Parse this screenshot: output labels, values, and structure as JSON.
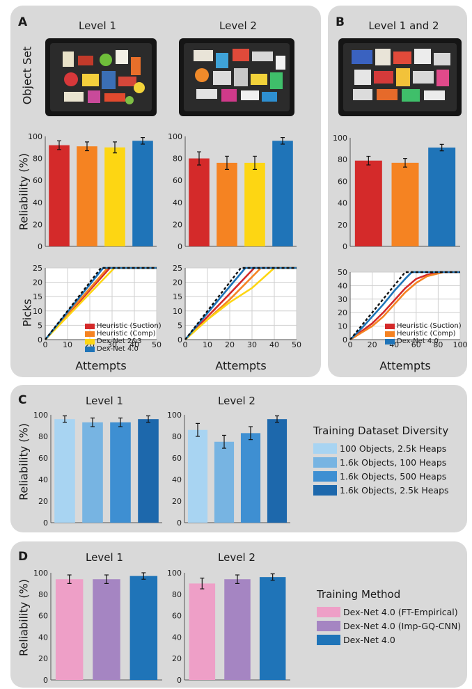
{
  "panels": {
    "a_label": "A",
    "b_label": "B",
    "c_label": "C",
    "d_label": "D",
    "a_level1": "Level 1",
    "a_level2": "Level 2",
    "b_level": "Level 1 and 2",
    "c_level1": "Level 1",
    "c_level2": "Level 2",
    "d_level1": "Level 1",
    "d_level2": "Level 2",
    "object_set_label": "Object Set",
    "reliability_label": "Reliability (%)",
    "picks_label": "Picks",
    "attempts_label": "Attempts"
  },
  "colors": {
    "heuristic_suction": "#d42a2a",
    "heuristic_comp": "#f58322",
    "dexnet_23": "#fdd613",
    "dexnet_40": "#1f74b8",
    "div_100_2_5k": "#a8d4f2",
    "div_1_6k_100": "#77b4e2",
    "div_1_6k_500": "#3e8fd2",
    "div_1_6k_2_5k": "#1d68ac",
    "ft_empirical": "#ee9fc7",
    "imp_gqcnn": "#a585c2",
    "panel_bg": "#d9d9d9"
  },
  "legend_a": [
    "Heuristic (Suction)",
    "Heuristic (Comp)",
    "Dex-Net 2&3",
    "Dex-Net 4.0"
  ],
  "legend_b": [
    "Heuristic (Suction)",
    "Heuristic (Comp)",
    "Dex-Net 4.0"
  ],
  "legend_c": {
    "title": "Training Dataset Diversity",
    "items": [
      "100 Objects, 2.5k Heaps",
      "1.6k Objects,  100 Heaps",
      "1.6k Objects,  500 Heaps",
      "1.6k Objects, 2.5k Heaps"
    ]
  },
  "legend_d": {
    "title": "Training Method",
    "items": [
      "Dex-Net 4.0 (FT-Empirical)",
      "Dex-Net 4.0 (Imp-GQ-CNN)",
      "Dex-Net 4.0"
    ]
  },
  "chart_data": [
    {
      "id": "a1_bar",
      "type": "bar",
      "ylim": [
        0,
        100
      ],
      "yticks": [
        0,
        20,
        40,
        60,
        80,
        100
      ],
      "categories": [
        "Heuristic (Suction)",
        "Heuristic (Comp)",
        "Dex-Net 2&3",
        "Dex-Net 4.0"
      ],
      "values": [
        92,
        91,
        90,
        96
      ],
      "errors": [
        4,
        4,
        5,
        3
      ]
    },
    {
      "id": "a2_bar",
      "type": "bar",
      "ylim": [
        0,
        100
      ],
      "yticks": [
        0,
        20,
        40,
        60,
        80,
        100
      ],
      "categories": [
        "Heuristic (Suction)",
        "Heuristic (Comp)",
        "Dex-Net 2&3",
        "Dex-Net 4.0"
      ],
      "values": [
        80,
        76,
        76,
        96
      ],
      "errors": [
        6,
        6,
        6,
        3
      ]
    },
    {
      "id": "b_bar",
      "type": "bar",
      "ylim": [
        0,
        100
      ],
      "yticks": [
        0,
        20,
        40,
        60,
        80,
        100
      ],
      "categories": [
        "Heuristic (Suction)",
        "Heuristic (Comp)",
        "Dex-Net 4.0"
      ],
      "values": [
        79,
        77,
        91
      ],
      "errors": [
        4,
        4,
        3
      ]
    },
    {
      "id": "a1_line",
      "type": "line",
      "xlim": [
        0,
        50
      ],
      "ylim": [
        0,
        25
      ],
      "xticks": [
        0,
        10,
        20,
        30,
        40,
        50
      ],
      "yticks": [
        0,
        5,
        10,
        15,
        20,
        25
      ],
      "series": [
        {
          "name": "Heuristic (Suction)",
          "points": [
            [
              0,
              0
            ],
            [
              29,
              25
            ],
            [
              50,
              25
            ]
          ]
        },
        {
          "name": "Heuristic (Comp)",
          "points": [
            [
              0,
              0
            ],
            [
              28,
              25
            ],
            [
              50,
              25
            ]
          ]
        },
        {
          "name": "Dex-Net 2&3",
          "points": [
            [
              0,
              0
            ],
            [
              31,
              25
            ],
            [
              50,
              25
            ]
          ]
        },
        {
          "name": "Dex-Net 4.0",
          "points": [
            [
              0,
              0
            ],
            [
              26,
              25
            ],
            [
              50,
              25
            ]
          ]
        },
        {
          "points": [
            [
              0,
              0
            ],
            [
              25,
              25
            ],
            [
              50,
              25
            ]
          ]
        }
      ]
    },
    {
      "id": "a2_line",
      "type": "line",
      "xlim": [
        0,
        50
      ],
      "ylim": [
        0,
        25
      ],
      "xticks": [
        0,
        10,
        20,
        30,
        40,
        50
      ],
      "yticks": [
        0,
        5,
        10,
        15,
        20,
        25
      ],
      "series": [
        {
          "name": "Heuristic (Suction)",
          "points": [
            [
              0,
              0
            ],
            [
              10,
              8
            ],
            [
              20,
              16
            ],
            [
              31,
              25
            ],
            [
              50,
              25
            ]
          ]
        },
        {
          "name": "Heuristic (Comp)",
          "points": [
            [
              0,
              0
            ],
            [
              10,
              7
            ],
            [
              20,
              14
            ],
            [
              34,
              25
            ],
            [
              50,
              25
            ]
          ]
        },
        {
          "name": "Dex-Net 2&3",
          "points": [
            [
              0,
              0
            ],
            [
              10,
              7
            ],
            [
              20,
              13
            ],
            [
              30,
              18
            ],
            [
              40,
              25
            ],
            [
              50,
              25
            ]
          ]
        },
        {
          "name": "Dex-Net 4.0",
          "points": [
            [
              0,
              0
            ],
            [
              27,
              25
            ],
            [
              50,
              25
            ]
          ]
        },
        {
          "points": [
            [
              0,
              0
            ],
            [
              25,
              25
            ],
            [
              50,
              25
            ]
          ]
        }
      ]
    },
    {
      "id": "b_line",
      "type": "line",
      "xlim": [
        0,
        100
      ],
      "ylim": [
        0,
        50
      ],
      "xticks": [
        0,
        20,
        40,
        60,
        80,
        100
      ],
      "yticks": [
        0,
        10,
        20,
        30,
        40,
        50
      ],
      "series": [
        {
          "name": "Heuristic (Suction)",
          "points": [
            [
              0,
              0
            ],
            [
              10,
              6
            ],
            [
              20,
              12
            ],
            [
              30,
              20
            ],
            [
              40,
              29
            ],
            [
              50,
              38
            ],
            [
              60,
              45
            ],
            [
              70,
              48
            ],
            [
              80,
              50
            ],
            [
              100,
              50
            ]
          ]
        },
        {
          "name": "Heuristic (Comp)",
          "points": [
            [
              0,
              0
            ],
            [
              10,
              5
            ],
            [
              20,
              10
            ],
            [
              30,
              17
            ],
            [
              40,
              26
            ],
            [
              50,
              35
            ],
            [
              60,
              42
            ],
            [
              70,
              47
            ],
            [
              85,
              50
            ],
            [
              100,
              50
            ]
          ]
        },
        {
          "name": "Dex-Net 4.0",
          "points": [
            [
              0,
              0
            ],
            [
              10,
              8
            ],
            [
              20,
              17
            ],
            [
              30,
              26
            ],
            [
              40,
              36
            ],
            [
              50,
              45
            ],
            [
              56,
              50
            ],
            [
              100,
              50
            ]
          ]
        },
        {
          "points": [
            [
              0,
              0
            ],
            [
              50,
              50
            ],
            [
              100,
              50
            ]
          ]
        }
      ]
    },
    {
      "id": "c1_bar",
      "type": "bar",
      "ylim": [
        0,
        100
      ],
      "yticks": [
        0,
        20,
        40,
        60,
        80,
        100
      ],
      "categories": [
        "100 Objects, 2.5k Heaps",
        "1.6k Objects,  100 Heaps",
        "1.6k Objects,  500 Heaps",
        "1.6k Objects, 2.5k Heaps"
      ],
      "values": [
        96,
        93,
        93,
        96
      ],
      "errors": [
        3,
        4,
        4,
        3
      ]
    },
    {
      "id": "c2_bar",
      "type": "bar",
      "ylim": [
        0,
        100
      ],
      "yticks": [
        0,
        20,
        40,
        60,
        80,
        100
      ],
      "categories": [
        "100 Objects, 2.5k Heaps",
        "1.6k Objects,  100 Heaps",
        "1.6k Objects,  500 Heaps",
        "1.6k Objects, 2.5k Heaps"
      ],
      "values": [
        86,
        75,
        83,
        96
      ],
      "errors": [
        6,
        6,
        6,
        3
      ]
    },
    {
      "id": "d1_bar",
      "type": "bar",
      "ylim": [
        0,
        100
      ],
      "yticks": [
        0,
        20,
        40,
        60,
        80,
        100
      ],
      "categories": [
        "Dex-Net 4.0 (FT-Empirical)",
        "Dex-Net 4.0 (Imp-GQ-CNN)",
        "Dex-Net 4.0"
      ],
      "values": [
        94,
        94,
        97
      ],
      "errors": [
        4,
        4,
        3
      ]
    },
    {
      "id": "d2_bar",
      "type": "bar",
      "ylim": [
        0,
        100
      ],
      "yticks": [
        0,
        20,
        40,
        60,
        80,
        100
      ],
      "categories": [
        "Dex-Net 4.0 (FT-Empirical)",
        "Dex-Net 4.0 (Imp-GQ-CNN)",
        "Dex-Net 4.0"
      ],
      "values": [
        90,
        94,
        96
      ],
      "errors": [
        5,
        4,
        3
      ]
    }
  ]
}
